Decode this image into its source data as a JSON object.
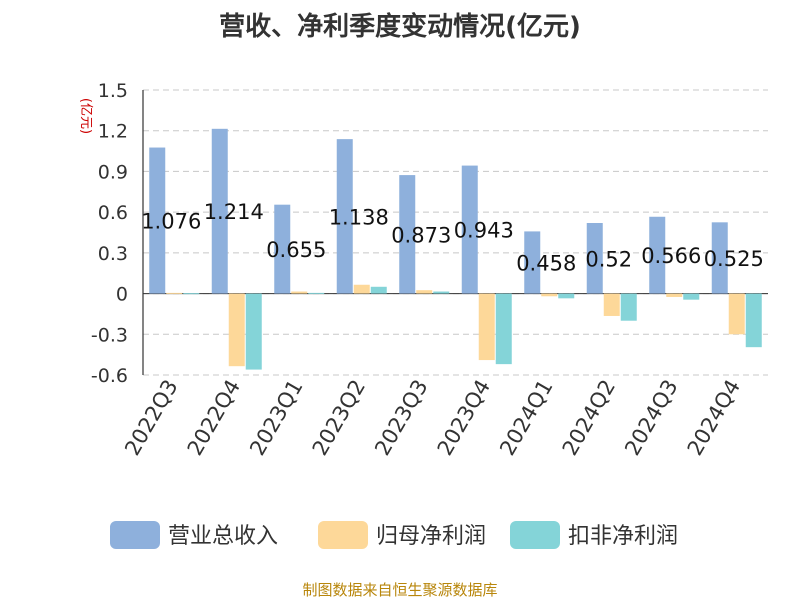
{
  "title": "营收、净利季度变动情况(亿元)",
  "source": "制图数据来自恒生聚源数据库",
  "chart_data": {
    "type": "bar",
    "title": "营收、净利季度变动情况(亿元)",
    "ylabel": "(亿元)",
    "ylim": [
      -0.6,
      1.5
    ],
    "yticks": [
      1.5,
      1.2,
      0.9,
      0.6,
      0.3,
      0,
      -0.3,
      -0.6
    ],
    "ytick_labels": [
      "1.5",
      "1.2",
      "0.9",
      "0.6",
      "0.3",
      "0",
      "-0.3",
      "-0.6"
    ],
    "grid": true,
    "legend_position": "bottom",
    "categories": [
      "2022Q3",
      "2022Q4",
      "2023Q1",
      "2023Q2",
      "2023Q3",
      "2023Q4",
      "2024Q1",
      "2024Q2",
      "2024Q3",
      "2024Q4"
    ],
    "series": [
      {
        "name": "营业总收入",
        "color": "#8eb0dc",
        "values": [
          1.076,
          1.214,
          0.655,
          1.138,
          0.873,
          0.943,
          0.458,
          0.52,
          0.566,
          0.525
        ],
        "labels": [
          "1.076",
          "1.214",
          "0.655",
          "1.138",
          "0.873",
          "0.943",
          "0.458",
          "0.52",
          "0.566",
          "0.525"
        ]
      },
      {
        "name": "归母净利润",
        "color": "#fdd899",
        "values": [
          0.005,
          -0.535,
          0.015,
          0.065,
          0.025,
          -0.49,
          -0.02,
          -0.165,
          -0.025,
          -0.3
        ]
      },
      {
        "name": "扣非净利润",
        "color": "#84d4d8",
        "values": [
          0.003,
          -0.56,
          0.005,
          0.05,
          0.015,
          -0.52,
          -0.035,
          -0.2,
          -0.045,
          -0.395
        ]
      }
    ]
  }
}
